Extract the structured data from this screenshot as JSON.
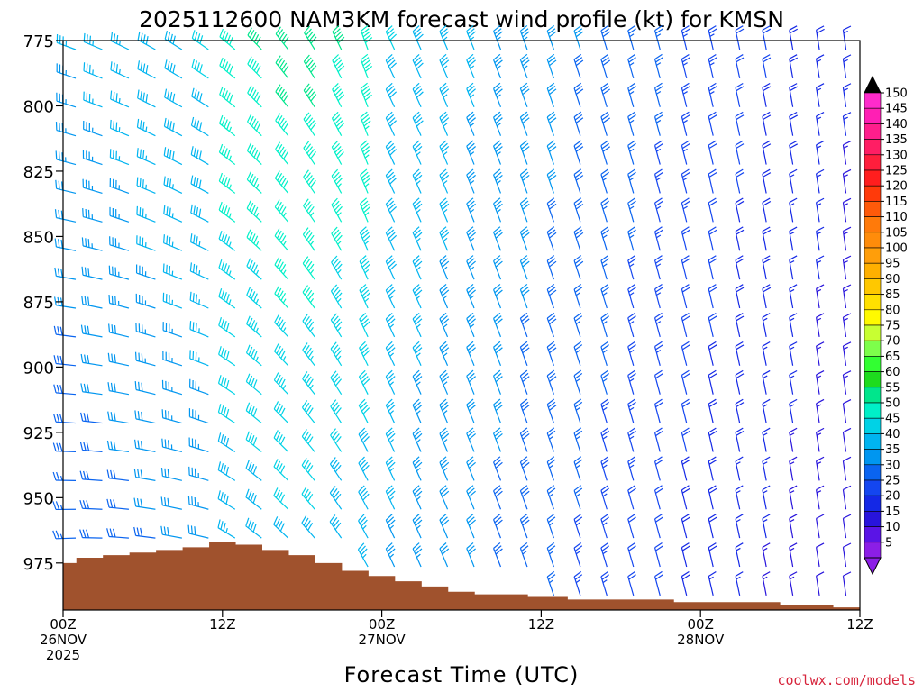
{
  "chart_data": {
    "type": "wind-barb time-height profile",
    "title": "2025112600 NAM3KM forecast wind profile (kt) for KMSN",
    "xlabel": "Forecast Time (UTC)",
    "ylabel": "",
    "credit": "coolwx.com/models",
    "y_ticks": [
      "775",
      "800",
      "825",
      "850",
      "875",
      "900",
      "925",
      "950",
      "975"
    ],
    "ylim": [
      775,
      993
    ],
    "x_ticks": [
      {
        "hour": 0,
        "line1": "00Z",
        "line2": "26NOV",
        "line3": "2025"
      },
      {
        "hour": 12,
        "line1": "12Z",
        "line2": "",
        "line3": ""
      },
      {
        "hour": 24,
        "line1": "00Z",
        "line2": "27NOV",
        "line3": ""
      },
      {
        "hour": 36,
        "line1": "12Z",
        "line2": "",
        "line3": ""
      },
      {
        "hour": 48,
        "line1": "00Z",
        "line2": "28NOV",
        "line3": ""
      },
      {
        "hour": 60,
        "line1": "12Z",
        "line2": "",
        "line3": ""
      }
    ],
    "xlim_hours": [
      0,
      60
    ],
    "levels_hpa": [
      775,
      786,
      797,
      808,
      819,
      830,
      841,
      852,
      863,
      874,
      885,
      896,
      907,
      918,
      929,
      940,
      951,
      962,
      973,
      984
    ],
    "times_hours": [
      0,
      2,
      4,
      6,
      8,
      10,
      12,
      14,
      16,
      18,
      20,
      22,
      24,
      26,
      28,
      30,
      32,
      34,
      36,
      38,
      40,
      42,
      44,
      46,
      48,
      50,
      52,
      54,
      56,
      58
    ],
    "surface_pressure_hpa": [
      {
        "hour": 0,
        "p": 975
      },
      {
        "hour": 1,
        "p": 973
      },
      {
        "hour": 3,
        "p": 972
      },
      {
        "hour": 5,
        "p": 971
      },
      {
        "hour": 7,
        "p": 970
      },
      {
        "hour": 9,
        "p": 969
      },
      {
        "hour": 11,
        "p": 967
      },
      {
        "hour": 13,
        "p": 968
      },
      {
        "hour": 15,
        "p": 970
      },
      {
        "hour": 17,
        "p": 972
      },
      {
        "hour": 19,
        "p": 975
      },
      {
        "hour": 21,
        "p": 978
      },
      {
        "hour": 23,
        "p": 980
      },
      {
        "hour": 25,
        "p": 982
      },
      {
        "hour": 27,
        "p": 984
      },
      {
        "hour": 29,
        "p": 986
      },
      {
        "hour": 31,
        "p": 987
      },
      {
        "hour": 35,
        "p": 988
      },
      {
        "hour": 38,
        "p": 989
      },
      {
        "hour": 46,
        "p": 990
      },
      {
        "hour": 54,
        "p": 991
      },
      {
        "hour": 58,
        "p": 992
      },
      {
        "hour": 60,
        "p": 992
      }
    ],
    "colorbar": {
      "labels": [
        "150",
        "145",
        "140",
        "135",
        "130",
        "125",
        "120",
        "115",
        "110",
        "105",
        "100",
        "95",
        "90",
        "85",
        "80",
        "75",
        "70",
        "65",
        "60",
        "55",
        "50",
        "45",
        "40",
        "35",
        "30",
        "25",
        "20",
        "15",
        "10",
        "5"
      ],
      "colors": [
        "#ff2bcc",
        "#ff1fb4",
        "#ff1e8c",
        "#ff1e64",
        "#ff1e3c",
        "#ff1e1e",
        "#ff3a0a",
        "#ff5a0a",
        "#ff7a0a",
        "#ff8c0a",
        "#ff9e0a",
        "#ffb000",
        "#ffc800",
        "#ffe000",
        "#fffa00",
        "#c8ff32",
        "#7dff4b",
        "#32ff32",
        "#1edc1e",
        "#00e68c",
        "#00f0c8",
        "#00d2e6",
        "#00b4f0",
        "#0096f0",
        "#0a64f0",
        "#1446f0",
        "#1428e6",
        "#2814dc",
        "#5a14e6",
        "#8c1ee6"
      ],
      "top_color": "#000000",
      "bottom_color": "#8c1ee6"
    },
    "wind_field_description": "westerly to west-northwesterly winds near the start backing to north-northwesterly; strongest 45-55 kt aloft between 12Z 26NOV and 00Z 27NOV, weakening to 10-25 kt by 28NOV"
  }
}
